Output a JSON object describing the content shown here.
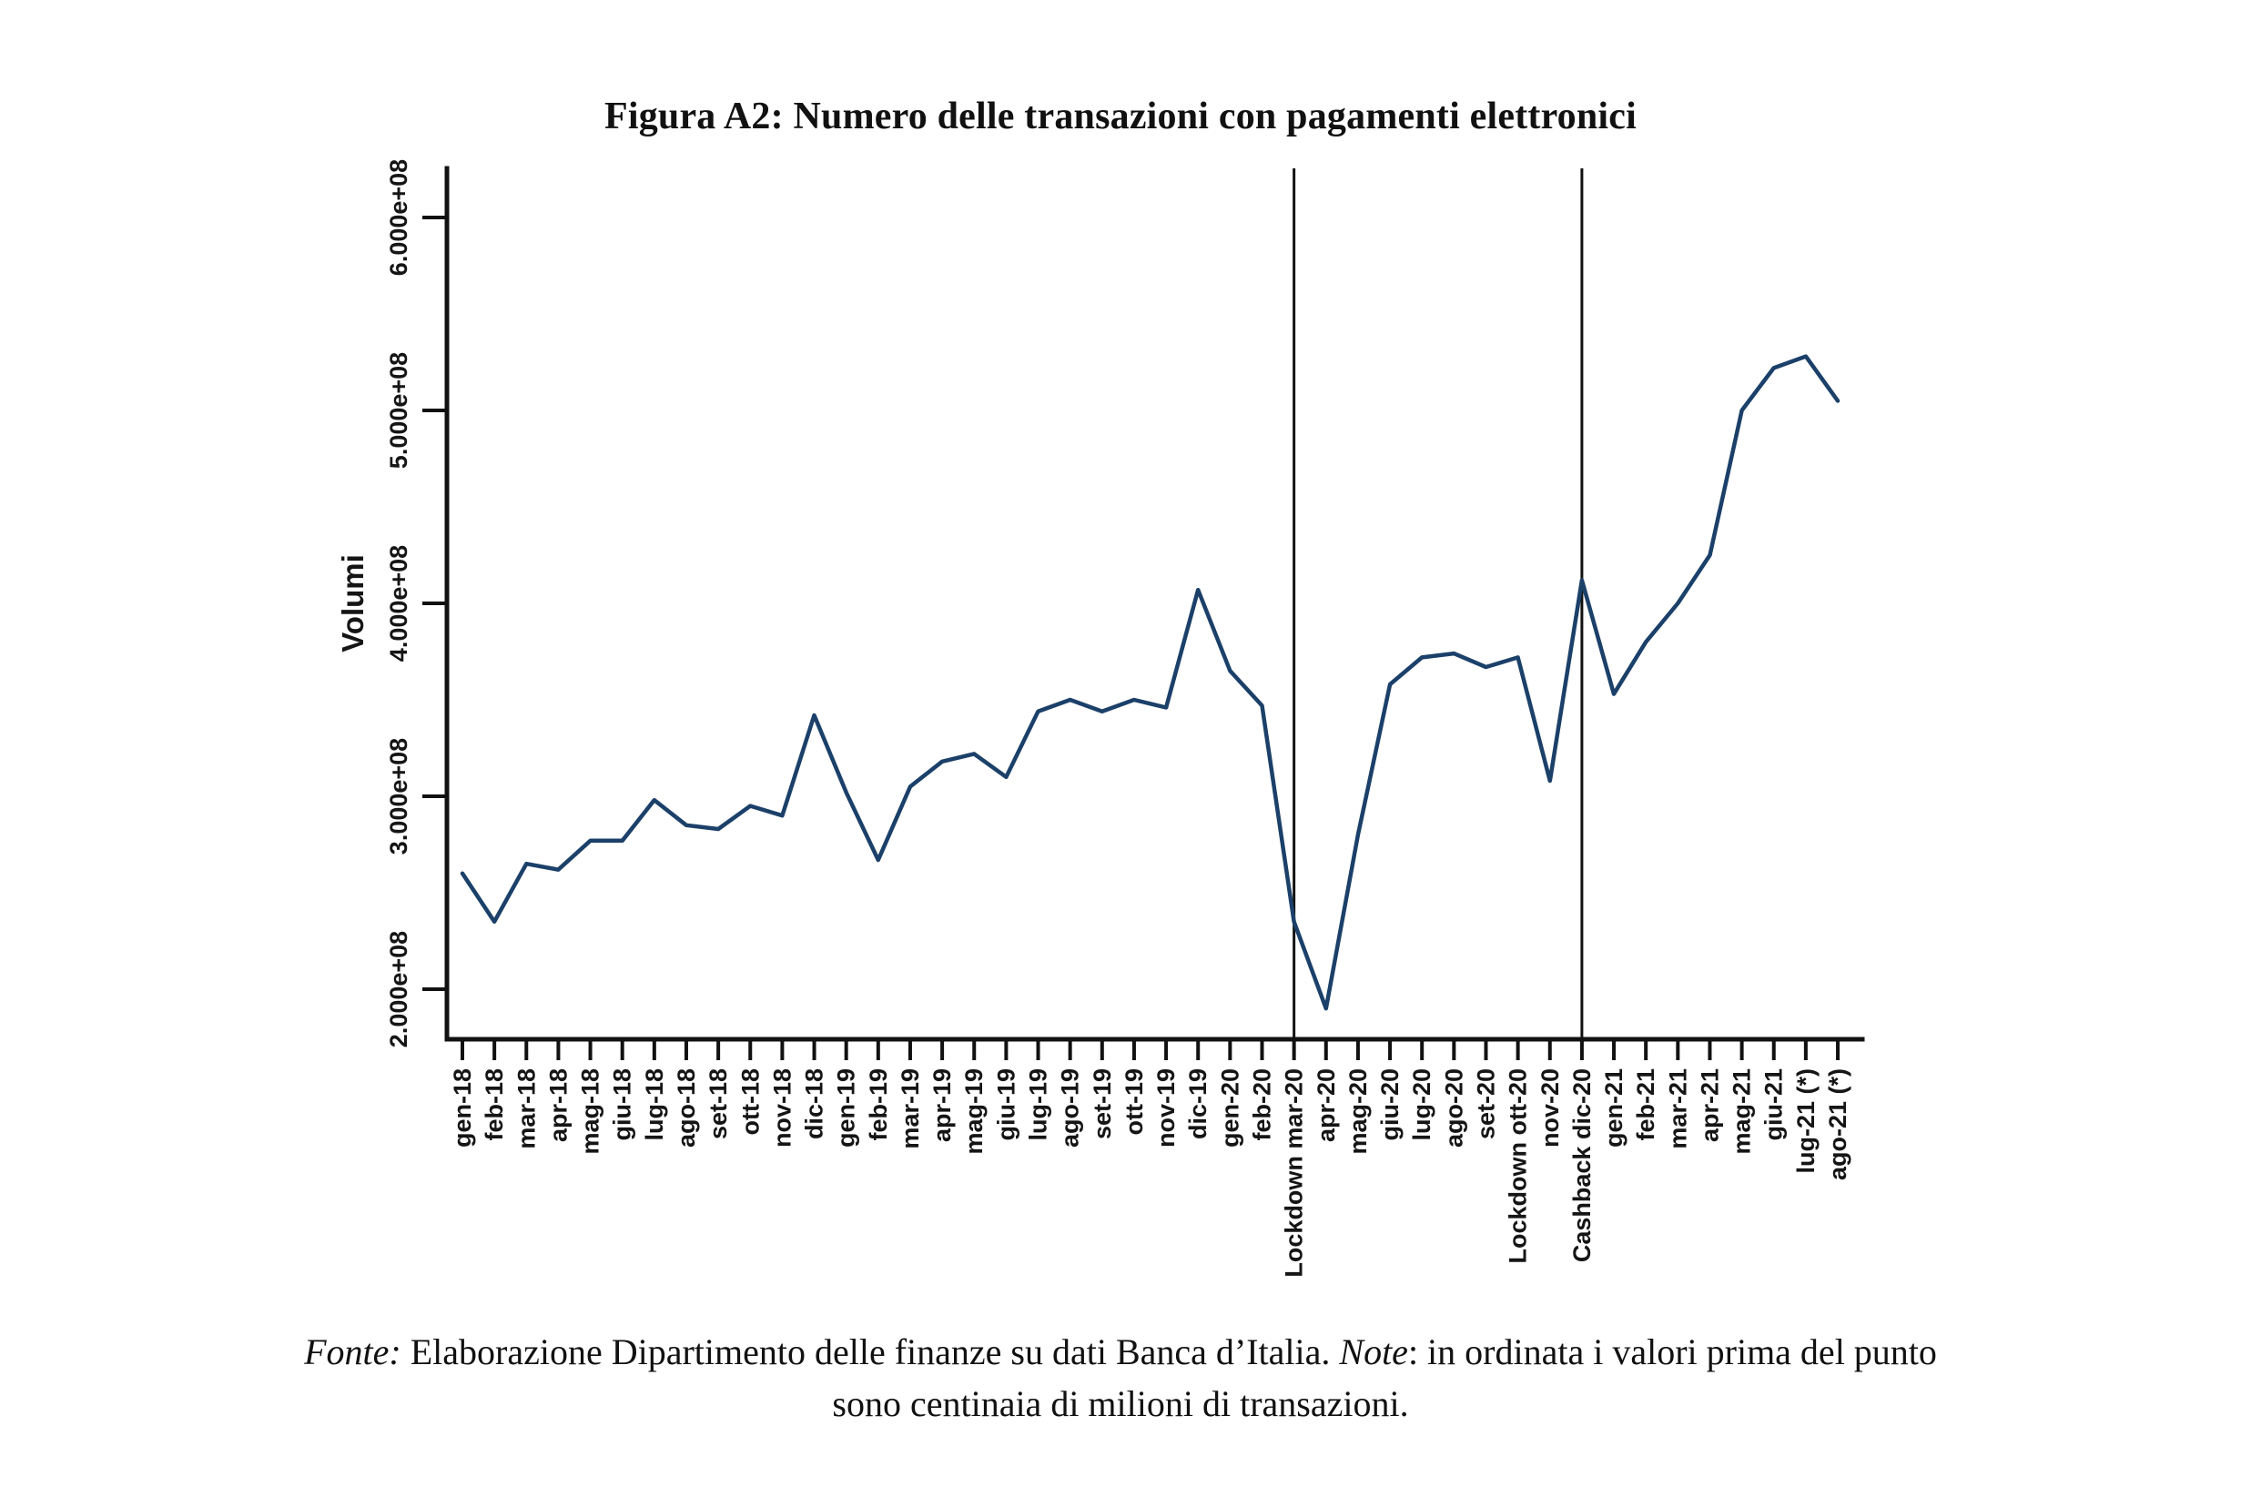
{
  "figure": {
    "title": "Figura A2: Numero delle transazioni con pagamenti elettronici"
  },
  "chart_data": {
    "type": "line",
    "title": "Figura A2: Numero delle transazioni con pagamenti elettronici",
    "xlabel": "",
    "ylabel": "Volumi",
    "value_unit": "1e+08 transazioni (valori in centinaia di milioni)",
    "legend": "none",
    "grid": "off",
    "ylim_e8": [
      1.74,
      6.25
    ],
    "y_ticks": [
      {
        "label": "2.000e+08",
        "value_e8": 2.0
      },
      {
        "label": "3.000e+08",
        "value_e8": 3.0
      },
      {
        "label": "4.000e+08",
        "value_e8": 4.0
      },
      {
        "label": "5.000e+08",
        "value_e8": 5.0
      },
      {
        "label": "6.000e+08",
        "value_e8": 6.0
      }
    ],
    "categories": [
      "gen-18",
      "feb-18",
      "mar-18",
      "apr-18",
      "mag-18",
      "giu-18",
      "lug-18",
      "ago-18",
      "set-18",
      "ott-18",
      "nov-18",
      "dic-18",
      "gen-19",
      "feb-19",
      "mar-19",
      "apr-19",
      "mag-19",
      "giu-19",
      "lug-19",
      "ago-19",
      "set-19",
      "ott-19",
      "nov-19",
      "dic-19",
      "gen-20",
      "feb-20",
      "Lockdown mar-20",
      "apr-20",
      "mag-20",
      "giu-20",
      "lug-20",
      "ago-20",
      "set-20",
      "Lockdown ott-20",
      "nov-20",
      "Cashback dic-20",
      "gen-21",
      "feb-21",
      "mar-21",
      "apr-21",
      "mag-21",
      "giu-21",
      "lug-21 (*)",
      "ago-21 (*)"
    ],
    "values_e8": [
      2.6,
      2.35,
      2.65,
      2.62,
      2.77,
      2.77,
      2.98,
      2.85,
      2.83,
      2.95,
      2.9,
      3.42,
      3.02,
      2.67,
      3.05,
      3.18,
      3.22,
      3.1,
      3.44,
      3.5,
      3.44,
      3.5,
      3.46,
      4.07,
      3.65,
      3.47,
      2.35,
      1.9,
      2.8,
      3.58,
      3.72,
      3.74,
      3.67,
      3.72,
      3.08,
      4.12,
      3.53,
      3.8,
      4.0,
      4.25,
      5.0,
      5.22,
      5.28,
      5.05
    ],
    "reference_lines": [
      {
        "label": "Lockdown mar-20",
        "category_index": 26
      },
      {
        "label": "Cashback dic-20",
        "category_index": 35
      }
    ],
    "line_color": "#1b4069",
    "axis_color": "#111111"
  },
  "footer": {
    "fonte_label": "Fonte:",
    "fonte_body": " Elaborazione Dipartimento delle finanze su dati Banca d’Italia. ",
    "note_label": "Note",
    "note_body_line1": ": in ordinata i valori prima del punto",
    "note_body_line2": "sono centinaia di milioni di transazioni."
  }
}
